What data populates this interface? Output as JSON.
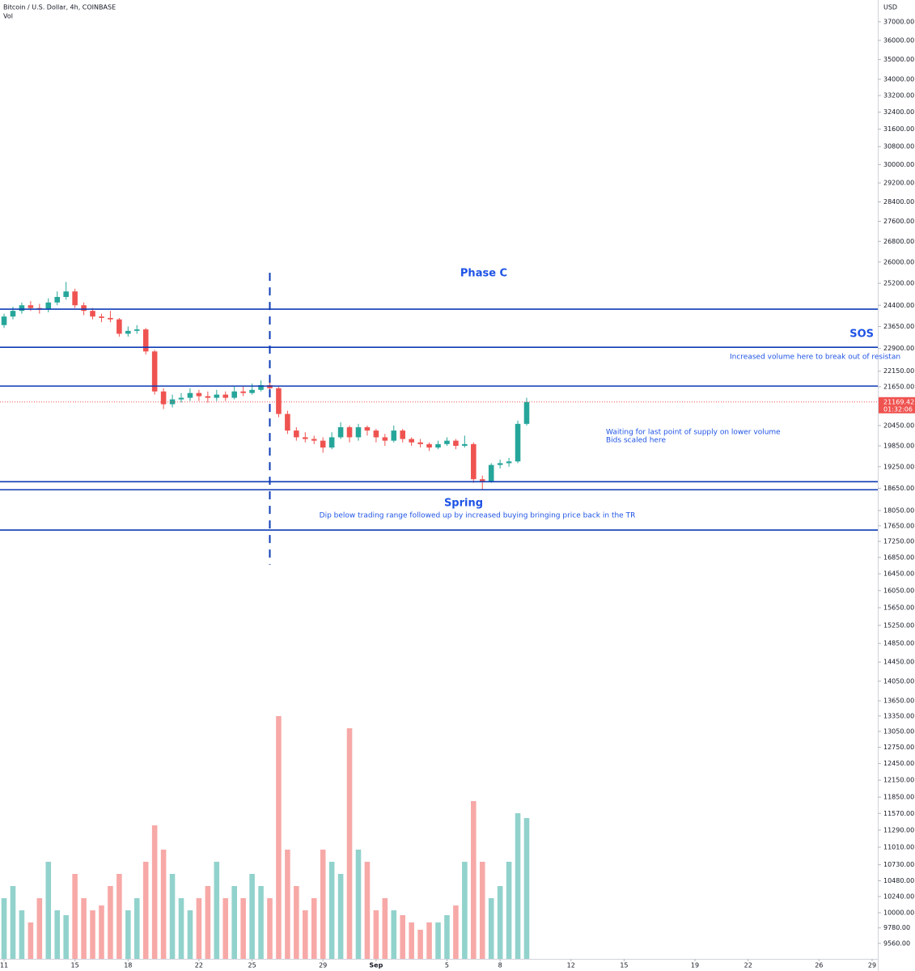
{
  "chart_data": {
    "type": "candlestick",
    "symbol": "Bitcoin / U.S. Dollar, 4h, COINBASE",
    "volume_label": "Vol",
    "currency": "USD",
    "log_scale": true,
    "colors": {
      "up": "#26a69a",
      "down": "#ef5350",
      "level": "#0d3bb5",
      "annotation": "#1e53e5"
    },
    "x": [
      0,
      0.5,
      1,
      1.5,
      2,
      2.5,
      3,
      3.5,
      4,
      4.5,
      5,
      5.5,
      6,
      6.5,
      7,
      7.5,
      8,
      8.5,
      9,
      9.5,
      10,
      10.5,
      11,
      11.5,
      12,
      12.5,
      13,
      13.5,
      14,
      14.5,
      15,
      15.5,
      16,
      16.5,
      17,
      17.5,
      18,
      18.5,
      19,
      19.5,
      20,
      20.5,
      21,
      21.5,
      22,
      22.5,
      23,
      23.5,
      24,
      24.5,
      25,
      25.5,
      26,
      26.5,
      27,
      27.5,
      28,
      28.5,
      29,
      29.5
    ],
    "open": [
      23700,
      24000,
      24200,
      24400,
      24300,
      24250,
      24500,
      24700,
      24900,
      24400,
      24200,
      24000,
      23950,
      23900,
      23400,
      23500,
      23550,
      22800,
      21500,
      21100,
      21250,
      21300,
      21450,
      21350,
      21300,
      21400,
      21300,
      21500,
      21450,
      21550,
      21700,
      21600,
      20800,
      20300,
      20100,
      20050,
      20000,
      19800,
      20100,
      20400,
      20100,
      20400,
      20300,
      20100,
      20000,
      20300,
      20050,
      19950,
      19900,
      19800,
      19900,
      20000,
      19850,
      19900,
      18900,
      18850,
      19300,
      19350,
      19400,
      20500
    ],
    "high": [
      24100,
      24350,
      24500,
      24550,
      24450,
      24650,
      24900,
      25250,
      25000,
      24500,
      24300,
      24100,
      24200,
      23950,
      23650,
      23700,
      23600,
      22850,
      21600,
      21400,
      21450,
      21600,
      21550,
      21500,
      21550,
      21500,
      21650,
      21650,
      21750,
      21850,
      21950,
      21650,
      20900,
      20400,
      20250,
      20150,
      20100,
      20250,
      20550,
      20450,
      20500,
      20450,
      20350,
      20200,
      20450,
      20350,
      20100,
      20050,
      19950,
      20000,
      20100,
      20050,
      20150,
      19950,
      19000,
      19350,
      19450,
      19500,
      20600,
      21300
    ],
    "low": [
      23600,
      23900,
      24100,
      24200,
      24100,
      24150,
      24400,
      24600,
      24300,
      24050,
      23900,
      23800,
      23800,
      23300,
      23300,
      23400,
      22700,
      21400,
      20950,
      21000,
      21150,
      21200,
      21200,
      21150,
      21200,
      21200,
      21250,
      21350,
      21400,
      21500,
      21500,
      20700,
      20200,
      20000,
      19950,
      19900,
      19650,
      19750,
      20050,
      19950,
      20000,
      20150,
      19950,
      19850,
      19950,
      19950,
      19850,
      19800,
      19700,
      19750,
      19850,
      19750,
      19800,
      18800,
      18600,
      18800,
      19200,
      19250,
      19350,
      20450
    ],
    "close": [
      24000,
      24200,
      24400,
      24300,
      24250,
      24500,
      24700,
      24900,
      24400,
      24200,
      24000,
      23950,
      23900,
      23400,
      23500,
      23550,
      22800,
      21500,
      21100,
      21250,
      21300,
      21450,
      21350,
      21300,
      21400,
      21300,
      21500,
      21450,
      21550,
      21700,
      21600,
      20800,
      20300,
      20100,
      20050,
      20000,
      19800,
      20100,
      20400,
      20100,
      20400,
      20300,
      20100,
      20000,
      20300,
      20050,
      19950,
      19900,
      19800,
      19900,
      20000,
      19850,
      19900,
      18900,
      18850,
      19300,
      19350,
      19400,
      20500,
      21169.42
    ],
    "volume": [
      25,
      30,
      20,
      15,
      25,
      40,
      20,
      18,
      35,
      25,
      20,
      22,
      30,
      35,
      20,
      25,
      40,
      55,
      45,
      35,
      25,
      20,
      25,
      30,
      40,
      25,
      30,
      25,
      35,
      30,
      25,
      100,
      45,
      30,
      20,
      25,
      45,
      40,
      35,
      95,
      45,
      40,
      20,
      25,
      20,
      18,
      15,
      12,
      15,
      15,
      18,
      22,
      40,
      65,
      40,
      25,
      30,
      40,
      60,
      58
    ],
    "volume_ylim": [
      0,
      100
    ],
    "last_price": 21169.42,
    "countdown": "01:32:06",
    "xlim": [
      -0.23,
      49.32
    ],
    "xticks": [
      {
        "value": 0,
        "label": "11"
      },
      {
        "value": 4,
        "label": "15"
      },
      {
        "value": 7,
        "label": "18"
      },
      {
        "value": 11,
        "label": "22"
      },
      {
        "value": 14,
        "label": "25"
      },
      {
        "value": 18,
        "label": "29"
      },
      {
        "value": 21,
        "label": "Sep"
      },
      {
        "value": 25,
        "label": "5"
      },
      {
        "value": 28,
        "label": "8"
      },
      {
        "value": 32,
        "label": "12"
      },
      {
        "value": 35,
        "label": "15"
      },
      {
        "value": 39,
        "label": "19"
      },
      {
        "value": 42,
        "label": "22"
      },
      {
        "value": 46,
        "label": "26"
      },
      {
        "value": 49,
        "label": "29"
      }
    ],
    "ylim": [
      9345,
      38200
    ],
    "yticks": [
      {
        "value": 37000,
        "label": "37000.00"
      },
      {
        "value": 36000,
        "label": "36000.00"
      },
      {
        "value": 35000,
        "label": "35000.00"
      },
      {
        "value": 34000,
        "label": "34000.00"
      },
      {
        "value": 33200,
        "label": "33200.00"
      },
      {
        "value": 32400,
        "label": "32400.00"
      },
      {
        "value": 31600,
        "label": "31600.00"
      },
      {
        "value": 30800,
        "label": "30800.00"
      },
      {
        "value": 30000,
        "label": "30000.00"
      },
      {
        "value": 29200,
        "label": "29200.00"
      },
      {
        "value": 28400,
        "label": "28400.00"
      },
      {
        "value": 27600,
        "label": "27600.00"
      },
      {
        "value": 26800,
        "label": "26800.00"
      },
      {
        "value": 26000,
        "label": "26000.00"
      },
      {
        "value": 25200,
        "label": "25200.00"
      },
      {
        "value": 24400,
        "label": "24400.00"
      },
      {
        "value": 23650,
        "label": "23650.00"
      },
      {
        "value": 22900,
        "label": "22900.00"
      },
      {
        "value": 22150,
        "label": "22150.00"
      },
      {
        "value": 21650,
        "label": "21650.00"
      },
      {
        "value": 20450,
        "label": "20450.00"
      },
      {
        "value": 19850,
        "label": "19850.00"
      },
      {
        "value": 19250,
        "label": "19250.00"
      },
      {
        "value": 18650,
        "label": "18650.00"
      },
      {
        "value": 18050,
        "label": "18050.00"
      },
      {
        "value": 17650,
        "label": "17650.00"
      },
      {
        "value": 17250,
        "label": "17250.00"
      },
      {
        "value": 16850,
        "label": "16850.00"
      },
      {
        "value": 16450,
        "label": "16450.00"
      },
      {
        "value": 16050,
        "label": "16050.00"
      },
      {
        "value": 15650,
        "label": "15650.00"
      },
      {
        "value": 15250,
        "label": "15250.00"
      },
      {
        "value": 14850,
        "label": "14850.00"
      },
      {
        "value": 14450,
        "label": "14450.00"
      },
      {
        "value": 14050,
        "label": "14050.00"
      },
      {
        "value": 13650,
        "label": "13650.00"
      },
      {
        "value": 13350,
        "label": "13350.00"
      },
      {
        "value": 13050,
        "label": "13050.00"
      },
      {
        "value": 12750,
        "label": "12750.00"
      },
      {
        "value": 12450,
        "label": "12450.00"
      },
      {
        "value": 12150,
        "label": "12150.00"
      },
      {
        "value": 11850,
        "label": "11850.00"
      },
      {
        "value": 11570,
        "label": "11570.00"
      },
      {
        "value": 11290,
        "label": "11290.00"
      },
      {
        "value": 11010,
        "label": "11010.00"
      },
      {
        "value": 10730,
        "label": "10730.00"
      },
      {
        "value": 10480,
        "label": "10480.00"
      },
      {
        "value": 10240,
        "label": "10240.00"
      },
      {
        "value": 10000,
        "label": "10000.00"
      },
      {
        "value": 9780,
        "label": "9780.00"
      },
      {
        "value": 9560,
        "label": "9560.00"
      }
    ],
    "levels": [
      24260,
      22940,
      21670,
      18830,
      18610,
      17540
    ],
    "vline": {
      "x": 15,
      "y": [
        25590,
        16670
      ]
    },
    "annotations": [
      "Phase C",
      "SOS",
      "Increased volume here to break out of resistan",
      "Waiting for last point of supply on lower volume",
      "Bids scaled here",
      "Spring",
      "Dip below trading range followed up by increased buying bringing price back in the TR"
    ]
  }
}
